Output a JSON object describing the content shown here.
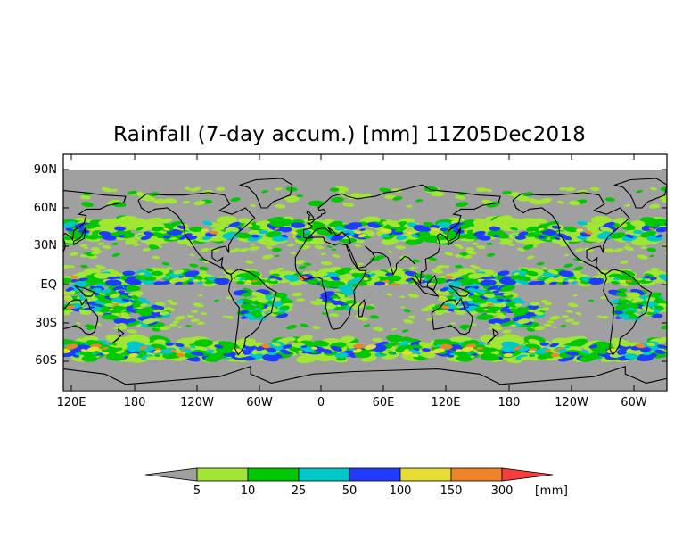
{
  "title": "Rainfall (7-day accum.) [mm] 11Z05Dec2018",
  "lat_labels": [
    "90N",
    "60N",
    "30N",
    "EQ",
    "30S",
    "60S"
  ],
  "lon_labels": [
    "120E",
    "180",
    "120W",
    "60W",
    "0",
    "60E",
    "120E",
    "180",
    "120W",
    "60W"
  ],
  "colorbar": {
    "labels": [
      "5",
      "10",
      "25",
      "50",
      "100",
      "150",
      "300"
    ],
    "unit": "[mm]",
    "colors": [
      "#a0a0a0",
      "#a0e632",
      "#00c800",
      "#00c8c8",
      "#1e3cff",
      "#e6dc32",
      "#f08228",
      "#fa3c3c"
    ]
  },
  "colors": {
    "ocean_dry": "#a0a0a0",
    "light": "#a0e632",
    "green": "#00c800",
    "cyan": "#00c8c8",
    "blue": "#1e3cff",
    "yellow": "#e6dc32",
    "orange": "#f08228",
    "red": "#fa3c3c"
  }
}
